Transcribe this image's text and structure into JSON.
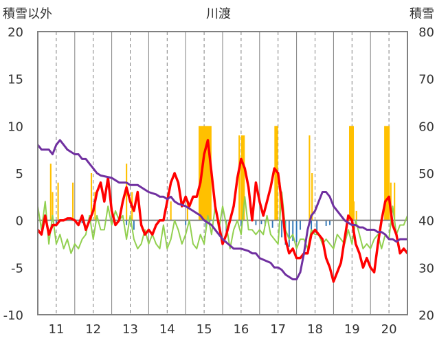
{
  "chart_data": {
    "type": "line",
    "title": "川渡",
    "left_axis_title": "積雪以外",
    "right_axis_title": "積雪",
    "x": {
      "min": 10.5,
      "max": 20.5,
      "ticks": [
        11,
        12,
        13,
        14,
        15,
        16,
        17,
        18,
        19,
        20
      ],
      "tick_labels": [
        "11",
        "12",
        "13",
        "14",
        "15",
        "16",
        "17",
        "18",
        "19",
        "20"
      ],
      "minor_ticks": [
        10.5,
        11.5,
        12.5,
        13.5,
        14.5,
        15.5,
        16.5,
        17.5,
        18.5,
        19.5,
        20.5
      ]
    },
    "y_left": {
      "min": -10,
      "max": 20,
      "ticks": [
        -10,
        -5,
        0,
        5,
        10,
        15,
        20
      ],
      "tick_labels": [
        "-10",
        "-5",
        "0",
        "5",
        "10",
        "15",
        "20"
      ]
    },
    "y_right": {
      "min": 20,
      "max": 80,
      "ticks": [
        20,
        30,
        40,
        50,
        60,
        70,
        80
      ],
      "tick_labels": [
        "20",
        "30",
        "40",
        "50",
        "60",
        "70",
        "80"
      ]
    },
    "grid": "vertical",
    "colors": {
      "precip": "#ffc000",
      "negative_bar": "#2e75b6",
      "red_line": "#ff0000",
      "green_line": "#92d050",
      "purple_line": "#7030a0",
      "zero_line": "#808080"
    },
    "series": [
      {
        "axis": "left",
        "kind": "bar",
        "color": "#ffc000",
        "width_days": 0.04,
        "x": [
          10.85,
          10.9,
          11.05,
          11.45,
          11.95,
          12.05,
          12.9,
          13.05,
          14.1,
          14.55,
          15.95,
          16.0,
          16.05,
          16.95,
          17.05,
          17.85,
          17.92,
          18.95,
          19.05,
          19.12,
          20.05,
          20.15
        ],
        "values": [
          6,
          3,
          4,
          4,
          5,
          3,
          6,
          3,
          2,
          2,
          9,
          6,
          3,
          10,
          4,
          9,
          5,
          10,
          2,
          1,
          4,
          4
        ]
      },
      {
        "axis": "left",
        "kind": "band",
        "color": "#ffc000",
        "spans": [
          {
            "start": 14.85,
            "end": 15.2,
            "value": 10
          },
          {
            "start": 16.0,
            "end": 16.1,
            "value": 9
          },
          {
            "start": 16.9,
            "end": 17.0,
            "value": 10
          },
          {
            "start": 18.92,
            "end": 19.05,
            "value": 10
          },
          {
            "start": 19.87,
            "end": 20.02,
            "value": 10
          }
        ]
      },
      {
        "axis": "left",
        "kind": "bar",
        "color": "#2e75b6",
        "width_days": 0.035,
        "x": [
          11.0,
          11.7,
          12.9,
          13.1,
          13.3,
          14.5,
          15.05,
          15.15,
          15.6,
          16.0,
          16.4,
          16.55,
          16.65,
          16.85,
          17.1,
          17.2,
          17.3,
          17.4,
          17.5,
          17.6,
          17.9,
          18.05,
          18.3,
          18.4
        ],
        "values": [
          -0.4,
          -0.3,
          -0.5,
          -1.0,
          -0.6,
          -0.5,
          -0.8,
          -0.6,
          -1.2,
          -0.6,
          -0.5,
          -0.4,
          -0.6,
          -0.8,
          -1.8,
          -2.6,
          -2.8,
          -2.2,
          -2.3,
          -1.0,
          -1.2,
          -1.5,
          -0.6,
          -0.5
        ]
      },
      {
        "axis": "left",
        "kind": "line",
        "color": "#92d050",
        "width": 2,
        "x": [
          10.5,
          10.6,
          10.7,
          10.8,
          10.9,
          11.0,
          11.1,
          11.2,
          11.3,
          11.4,
          11.5,
          11.6,
          11.7,
          11.8,
          11.9,
          12.0,
          12.1,
          12.2,
          12.3,
          12.4,
          12.5,
          12.6,
          12.7,
          12.8,
          12.9,
          13.0,
          13.1,
          13.2,
          13.3,
          13.4,
          13.5,
          13.6,
          13.7,
          13.8,
          13.9,
          14.0,
          14.1,
          14.2,
          14.3,
          14.4,
          14.5,
          14.6,
          14.7,
          14.8,
          14.9,
          15.0,
          15.1,
          15.2,
          15.3,
          15.4,
          15.5,
          15.6,
          15.7,
          15.8,
          15.9,
          16.0,
          16.1,
          16.2,
          16.3,
          16.4,
          16.5,
          16.6,
          16.7,
          16.8,
          16.9,
          17.0,
          17.1,
          17.2,
          17.3,
          17.4,
          17.5,
          17.6,
          17.7,
          17.8,
          17.9,
          18.0,
          18.1,
          18.2,
          18.3,
          18.4,
          18.5,
          18.6,
          18.7,
          18.8,
          18.9,
          19.0,
          19.1,
          19.2,
          19.3,
          19.4,
          19.5,
          19.6,
          19.7,
          19.8,
          19.9,
          20.0,
          20.1,
          20.2,
          20.3,
          20.4,
          20.5
        ],
        "values": [
          1.5,
          -1,
          2,
          -2.5,
          0.5,
          -2.5,
          -1.5,
          -3,
          -2,
          -3.5,
          -2.5,
          -3,
          -2,
          -1.5,
          0.5,
          -2,
          0.5,
          -1,
          -1,
          1.5,
          -0.5,
          1,
          0,
          0.5,
          -2,
          0.5,
          -2,
          -3,
          -2.5,
          -1,
          -2.5,
          -1.5,
          -2.5,
          -3,
          -0.5,
          -3,
          -2,
          0,
          -1,
          -2.5,
          -1.5,
          0,
          -2.5,
          -3,
          -1.5,
          -2.5,
          0.5,
          -1.5,
          1.5,
          -1,
          1.5,
          -0.5,
          -3,
          -1,
          0,
          -1.5,
          2.5,
          -1,
          -1,
          -1.5,
          -1,
          -1.5,
          0.5,
          -1.5,
          -2,
          -2.5,
          3,
          -1,
          -2,
          -1.5,
          -3,
          -2,
          -2,
          -3,
          -1,
          -1.5,
          -1.5,
          -2.5,
          -2,
          -2.5,
          -3,
          -1.5,
          -2,
          -2.5,
          -1,
          -2.5,
          0,
          -1.5,
          -3,
          -2.5,
          -3,
          -2,
          -1.5,
          -3,
          -1.5,
          -2,
          1.5,
          -1.5,
          -0.5,
          -0.5,
          0.5
        ]
      },
      {
        "axis": "left",
        "kind": "line",
        "color": "#ff0000",
        "width": 3.5,
        "x": [
          10.5,
          10.6,
          10.7,
          10.8,
          10.9,
          11.0,
          11.1,
          11.2,
          11.3,
          11.4,
          11.5,
          11.6,
          11.7,
          11.8,
          11.9,
          12.0,
          12.1,
          12.2,
          12.3,
          12.4,
          12.5,
          12.6,
          12.7,
          12.8,
          12.9,
          13.0,
          13.1,
          13.2,
          13.3,
          13.4,
          13.5,
          13.6,
          13.7,
          13.8,
          13.9,
          14.0,
          14.1,
          14.2,
          14.3,
          14.4,
          14.5,
          14.6,
          14.7,
          14.8,
          14.9,
          15.0,
          15.1,
          15.2,
          15.3,
          15.4,
          15.5,
          15.6,
          15.7,
          15.8,
          15.9,
          16.0,
          16.1,
          16.2,
          16.3,
          16.4,
          16.5,
          16.6,
          16.7,
          16.8,
          16.9,
          17.0,
          17.1,
          17.2,
          17.3,
          17.4,
          17.5,
          17.6,
          17.7,
          17.8,
          17.9,
          18.0,
          18.1,
          18.2,
          18.3,
          18.4,
          18.5,
          18.6,
          18.7,
          18.8,
          18.9,
          19.0,
          19.1,
          19.2,
          19.3,
          19.4,
          19.5,
          19.6,
          19.7,
          19.8,
          19.9,
          20.0,
          20.1,
          20.2,
          20.3,
          20.4,
          20.5
        ],
        "values": [
          -1,
          -1.5,
          0.5,
          -1.5,
          -0.5,
          -0.5,
          0,
          0,
          0.2,
          0.2,
          0,
          -0.5,
          0.5,
          -1,
          0,
          1,
          3,
          4,
          2,
          4.5,
          1,
          -0.5,
          0,
          2,
          3.5,
          2,
          1,
          3,
          -0.5,
          -1.5,
          -1,
          -1.5,
          -0.5,
          0,
          0,
          2,
          4,
          5,
          4,
          1.5,
          2.5,
          1.5,
          2.5,
          2.5,
          4,
          7,
          8.5,
          5,
          1.5,
          -0.5,
          -2.5,
          -1.5,
          0,
          1.5,
          4.5,
          6.5,
          5.5,
          3.5,
          0,
          4,
          2,
          0.5,
          2,
          3.5,
          5.5,
          5,
          2,
          -2,
          -3.5,
          -3,
          -4,
          -4,
          -3.5,
          -3.5,
          -1.5,
          -1,
          -1.5,
          -2,
          -4,
          -5,
          -6.5,
          -5.5,
          -4.5,
          -2,
          0.5,
          0,
          -2.5,
          -3.5,
          -5,
          -4,
          -5,
          -5.5,
          -2.5,
          0,
          2,
          2.5,
          -0.5,
          -1.5,
          -3.5,
          -3,
          -3.5
        ]
      },
      {
        "axis": "right",
        "kind": "line",
        "color": "#7030a0",
        "width": 3,
        "x": [
          10.5,
          10.6,
          10.8,
          10.9,
          11.0,
          11.1,
          11.2,
          11.3,
          11.4,
          11.5,
          11.6,
          11.7,
          11.8,
          11.9,
          12.0,
          12.1,
          12.2,
          12.5,
          12.6,
          12.7,
          12.9,
          13.0,
          13.2,
          13.3,
          13.5,
          13.7,
          13.8,
          13.9,
          14.0,
          14.1,
          14.2,
          14.3,
          14.5,
          14.6,
          14.7,
          14.9,
          15.0,
          15.2,
          15.3,
          15.5,
          15.8,
          15.9,
          16.0,
          16.2,
          16.3,
          16.4,
          16.5,
          16.8,
          16.9,
          17.0,
          17.1,
          17.2,
          17.4,
          17.5,
          17.6,
          17.7,
          17.8,
          17.9,
          18.0,
          18.1,
          18.2,
          18.3,
          18.4,
          18.5,
          18.6,
          18.7,
          18.8,
          18.9,
          19.0,
          19.1,
          19.2,
          19.3,
          19.4,
          19.5,
          19.6,
          19.7,
          19.8,
          19.9,
          20.0,
          20.1,
          20.2,
          20.3,
          20.5
        ],
        "values": [
          56,
          55,
          55,
          54,
          56,
          57,
          56,
          55,
          54.5,
          54,
          54,
          53,
          53,
          52,
          51,
          50,
          49.5,
          49,
          48.5,
          48,
          48,
          47.5,
          47.5,
          47,
          46,
          45.5,
          45,
          45,
          44.5,
          45,
          44,
          43.5,
          43,
          42.5,
          42,
          41,
          40,
          39,
          38,
          36,
          34,
          34,
          34,
          33.5,
          33,
          33,
          32,
          31,
          30,
          30,
          29.5,
          28.5,
          27.5,
          27.5,
          29,
          33,
          38,
          41,
          42,
          44,
          46,
          46,
          45,
          43,
          42,
          41,
          40,
          39.5,
          39,
          39,
          38.5,
          38.5,
          38,
          38,
          38,
          37.5,
          37.5,
          37,
          36,
          36,
          35.5,
          36,
          36
        ]
      }
    ]
  }
}
